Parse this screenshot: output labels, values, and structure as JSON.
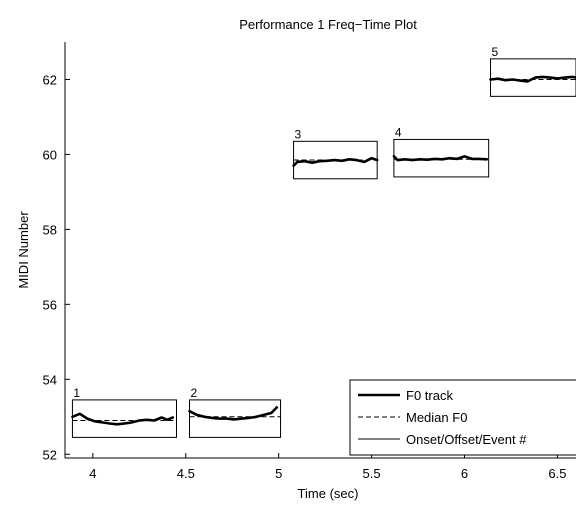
{
  "chart_data": {
    "type": "line",
    "title": "Performance 1 Freq−Time Plot",
    "xlabel": "Time (sec)",
    "ylabel": "MIDI Number",
    "xlim": [
      3.85,
      6.6
    ],
    "ylim": [
      51.9,
      63.0
    ],
    "xticks": [
      4,
      4.5,
      5,
      5.5,
      6,
      6.5
    ],
    "xtick_labels": [
      "4",
      "4.5",
      "5",
      "5.5",
      "6",
      "6.5"
    ],
    "yticks": [
      52,
      54,
      56,
      58,
      60,
      62
    ],
    "ytick_labels": [
      "52",
      "54",
      "56",
      "58",
      "60",
      "62"
    ],
    "grid": false,
    "legend": {
      "position": "bottom-right",
      "entries": [
        {
          "label": "F0 track",
          "style": "thick-solid"
        },
        {
          "label": "Median F0",
          "style": "dashed"
        },
        {
          "label": "Onset/Offset/Event #",
          "style": "thin-solid"
        }
      ]
    },
    "events": [
      {
        "label": "1",
        "onset": 3.89,
        "offset": 4.45,
        "box_ymin": 52.45,
        "box_ymax": 53.45,
        "median": 52.9,
        "f0": [
          [
            3.89,
            53.0
          ],
          [
            3.93,
            53.08
          ],
          [
            3.97,
            52.95
          ],
          [
            4.01,
            52.88
          ],
          [
            4.05,
            52.85
          ],
          [
            4.09,
            52.82
          ],
          [
            4.13,
            52.8
          ],
          [
            4.17,
            52.82
          ],
          [
            4.21,
            52.85
          ],
          [
            4.25,
            52.9
          ],
          [
            4.29,
            52.92
          ],
          [
            4.33,
            52.9
          ],
          [
            4.37,
            52.98
          ],
          [
            4.4,
            52.92
          ],
          [
            4.43,
            52.98
          ]
        ]
      },
      {
        "label": "2",
        "onset": 4.52,
        "offset": 5.01,
        "box_ymin": 52.45,
        "box_ymax": 53.45,
        "median": 53.0,
        "f0": [
          [
            4.52,
            53.15
          ],
          [
            4.56,
            53.05
          ],
          [
            4.6,
            53.0
          ],
          [
            4.64,
            52.97
          ],
          [
            4.68,
            52.95
          ],
          [
            4.72,
            52.95
          ],
          [
            4.76,
            52.93
          ],
          [
            4.8,
            52.95
          ],
          [
            4.84,
            52.97
          ],
          [
            4.88,
            53.0
          ],
          [
            4.92,
            53.05
          ],
          [
            4.96,
            53.1
          ],
          [
            4.99,
            53.25
          ]
        ]
      },
      {
        "label": "3",
        "onset": 5.08,
        "offset": 5.53,
        "box_ymin": 59.35,
        "box_ymax": 60.35,
        "median": 59.85,
        "f0": [
          [
            5.08,
            59.7
          ],
          [
            5.1,
            59.8
          ],
          [
            5.14,
            59.82
          ],
          [
            5.18,
            59.78
          ],
          [
            5.22,
            59.82
          ],
          [
            5.26,
            59.83
          ],
          [
            5.3,
            59.85
          ],
          [
            5.34,
            59.83
          ],
          [
            5.38,
            59.87
          ],
          [
            5.42,
            59.85
          ],
          [
            5.46,
            59.8
          ],
          [
            5.5,
            59.9
          ],
          [
            5.53,
            59.85
          ]
        ]
      },
      {
        "label": "4",
        "onset": 5.62,
        "offset": 6.13,
        "box_ymin": 59.4,
        "box_ymax": 60.4,
        "median": 59.87,
        "f0": [
          [
            5.62,
            59.95
          ],
          [
            5.64,
            59.85
          ],
          [
            5.68,
            59.87
          ],
          [
            5.72,
            59.85
          ],
          [
            5.76,
            59.87
          ],
          [
            5.8,
            59.86
          ],
          [
            5.84,
            59.88
          ],
          [
            5.88,
            59.87
          ],
          [
            5.92,
            59.9
          ],
          [
            5.96,
            59.88
          ],
          [
            6.0,
            59.95
          ],
          [
            6.04,
            59.88
          ],
          [
            6.08,
            59.88
          ],
          [
            6.12,
            59.87
          ]
        ]
      },
      {
        "label": "5",
        "onset": 6.14,
        "offset": 6.6,
        "box_ymin": 61.55,
        "box_ymax": 62.55,
        "median": 62.0,
        "f0": [
          [
            6.14,
            62.0
          ],
          [
            6.18,
            62.02
          ],
          [
            6.22,
            61.98
          ],
          [
            6.26,
            62.0
          ],
          [
            6.3,
            61.97
          ],
          [
            6.34,
            61.95
          ],
          [
            6.38,
            62.05
          ],
          [
            6.42,
            62.07
          ],
          [
            6.46,
            62.05
          ],
          [
            6.5,
            62.03
          ],
          [
            6.54,
            62.05
          ],
          [
            6.58,
            62.07
          ],
          [
            6.6,
            62.05
          ]
        ]
      }
    ]
  }
}
